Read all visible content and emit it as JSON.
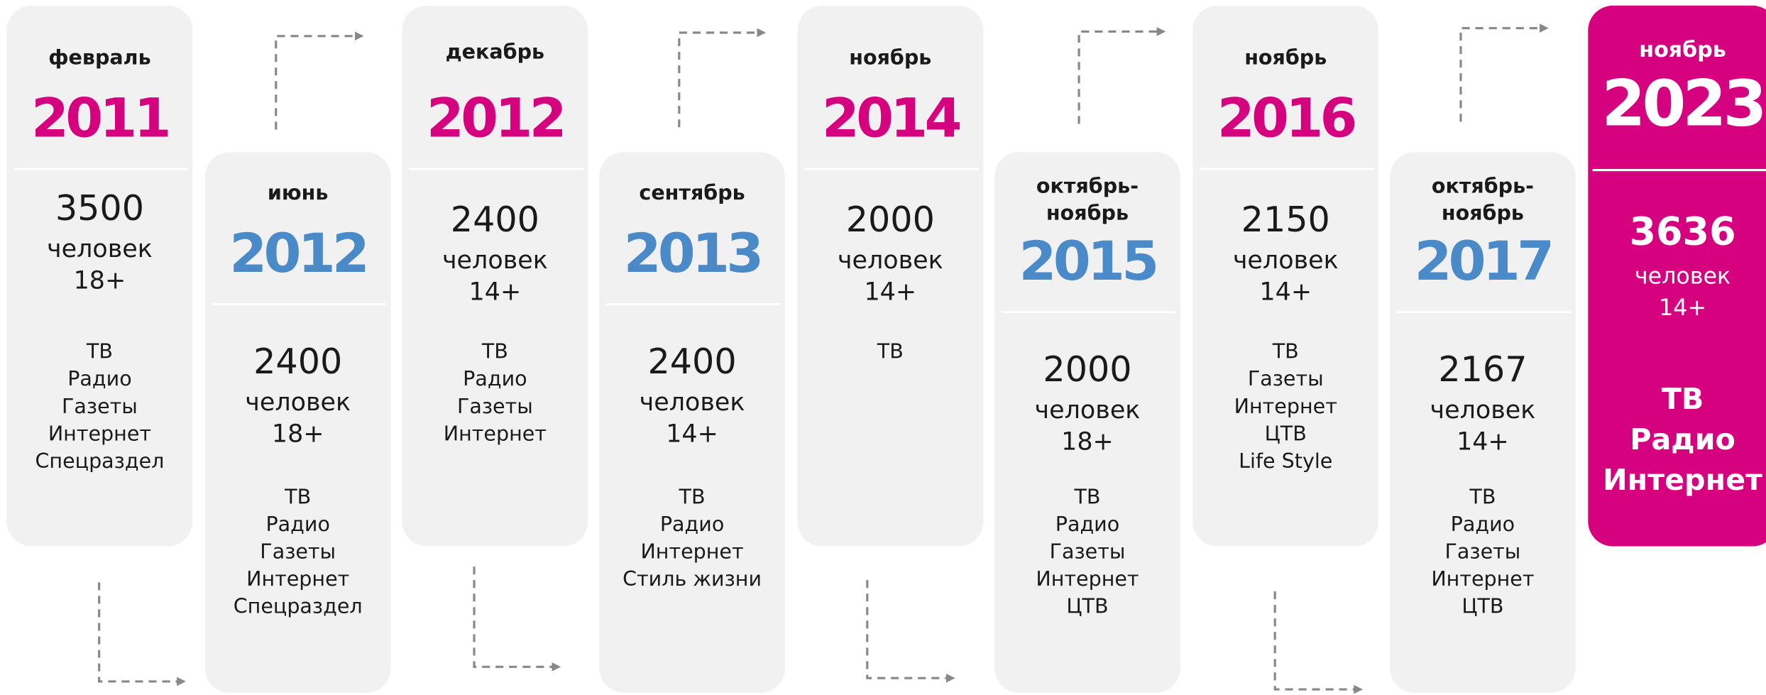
{
  "cards": [
    {
      "month": [
        "февраль"
      ],
      "year": "2011",
      "count": "3500",
      "unit": "человек",
      "age": "18+",
      "media": [
        "ТВ",
        "Радио",
        "Газеты",
        "Интернет",
        "Спецраздел"
      ]
    },
    {
      "month": [
        "июнь"
      ],
      "year": "2012",
      "count": "2400",
      "unit": "человек",
      "age": "18+",
      "media": [
        "ТВ",
        "Радио",
        "Газеты",
        "Интернет",
        "Спецраздел"
      ]
    },
    {
      "month": [
        "декабрь"
      ],
      "year": "2012",
      "count": "2400",
      "unit": "человек",
      "age": "14+",
      "media": [
        "ТВ",
        "Радио",
        "Газеты",
        "Интернет"
      ]
    },
    {
      "month": [
        "сентябрь"
      ],
      "year": "2013",
      "count": "2400",
      "unit": "человек",
      "age": "14+",
      "media": [
        "ТВ",
        "Радио",
        "Интернет",
        "Стиль жизни"
      ]
    },
    {
      "month": [
        "ноябрь"
      ],
      "year": "2014",
      "count": "2000",
      "unit": "человек",
      "age": "14+",
      "media": [
        "ТВ"
      ]
    },
    {
      "month": [
        "октябрь-",
        "ноябрь"
      ],
      "year": "2015",
      "count": "2000",
      "unit": "человек",
      "age": "18+",
      "media": [
        "ТВ",
        "Радио",
        "Газеты",
        "Интернет",
        "ЦТВ"
      ]
    },
    {
      "month": [
        "ноябрь"
      ],
      "year": "2016",
      "count": "2150",
      "unit": "человек",
      "age": "14+",
      "media": [
        "ТВ",
        "Газеты",
        "Интернет",
        "ЦТВ",
        "Life Style"
      ]
    },
    {
      "month": [
        "октябрь-",
        "ноябрь"
      ],
      "year": "2017",
      "count": "2167",
      "unit": "человек",
      "age": "14+",
      "media": [
        "ТВ",
        "Радио",
        "Газеты",
        "Интернет",
        "ЦТВ"
      ]
    },
    {
      "month": [
        "ноябрь"
      ],
      "year": "2023",
      "count": "3636",
      "unit": "человек",
      "age": "14+",
      "media": [
        "ТВ",
        "Радио",
        "Интернет"
      ]
    }
  ]
}
